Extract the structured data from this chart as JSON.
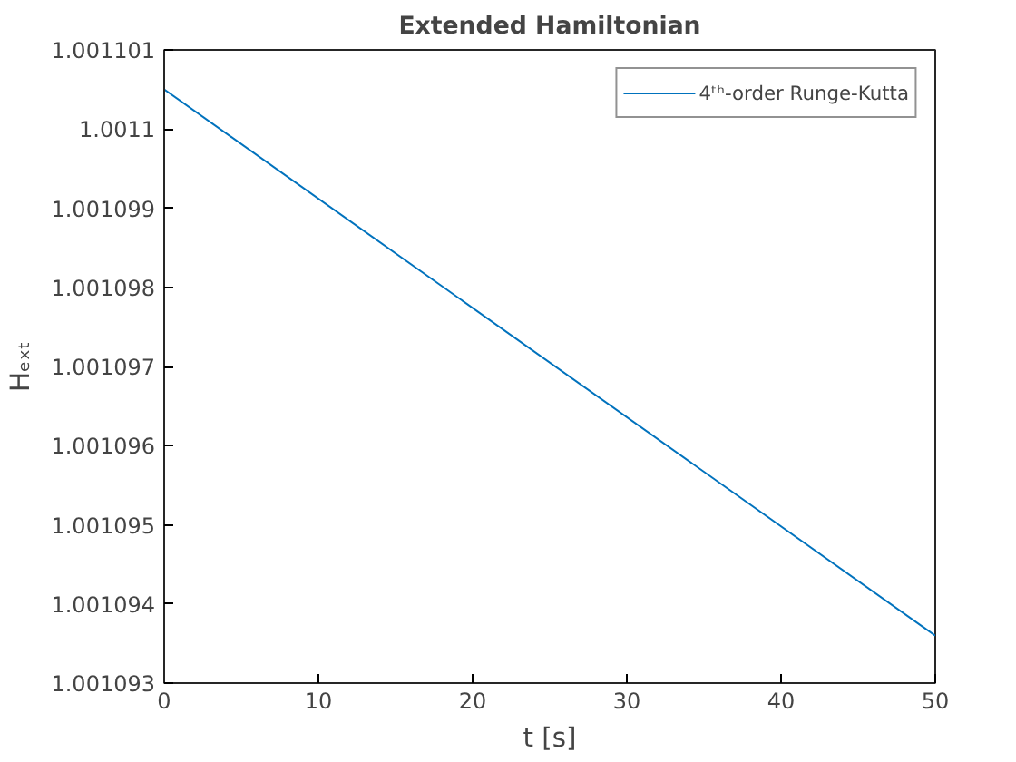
{
  "chart_data": {
    "type": "line",
    "title": "Extended Hamiltonian",
    "xlabel": "t [s]",
    "ylabel": "Hₑₓₜ",
    "x": [
      0,
      50
    ],
    "series": [
      {
        "name": "4ᵗʰ-order Runge-Kutta",
        "color": "#0072bd",
        "values": [
          1.0011005,
          1.0010936
        ]
      }
    ],
    "xlim": [
      0,
      50
    ],
    "xticks": [
      0,
      10,
      20,
      30,
      40,
      50
    ],
    "ylim": [
      1.001093,
      1.001101
    ],
    "yticks": [
      1.001093,
      1.001094,
      1.001095,
      1.001096,
      1.001097,
      1.001098,
      1.001099,
      1.0011,
      1.001101
    ],
    "legend": "top right",
    "grid": false,
    "line_style": "solid",
    "marker": "none"
  }
}
